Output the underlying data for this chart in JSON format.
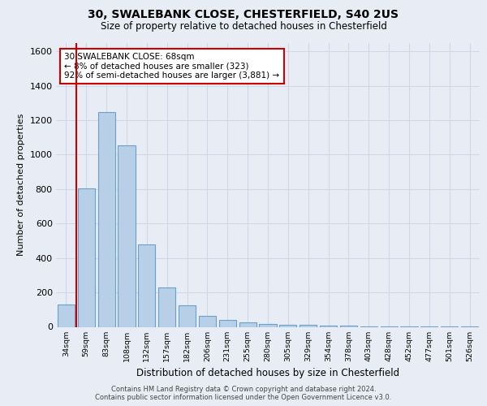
{
  "title_line1": "30, SWALEBANK CLOSE, CHESTERFIELD, S40 2US",
  "title_line2": "Size of property relative to detached houses in Chesterfield",
  "xlabel": "Distribution of detached houses by size in Chesterfield",
  "ylabel": "Number of detached properties",
  "footnote_line1": "Contains HM Land Registry data © Crown copyright and database right 2024.",
  "footnote_line2": "Contains public sector information licensed under the Open Government Licence v3.0.",
  "bar_labels": [
    "34sqm",
    "59sqm",
    "83sqm",
    "108sqm",
    "132sqm",
    "157sqm",
    "182sqm",
    "206sqm",
    "231sqm",
    "255sqm",
    "280sqm",
    "305sqm",
    "329sqm",
    "354sqm",
    "378sqm",
    "403sqm",
    "428sqm",
    "452sqm",
    "477sqm",
    "501sqm",
    "526sqm"
  ],
  "bar_values": [
    130,
    805,
    1245,
    1055,
    480,
    230,
    125,
    65,
    40,
    28,
    17,
    12,
    10,
    8,
    5,
    4,
    3,
    2,
    2,
    2,
    2
  ],
  "bar_color": "#b8cfe8",
  "bar_edge_color": "#6aa0cc",
  "ylim_max": 1650,
  "yticks": [
    0,
    200,
    400,
    600,
    800,
    1000,
    1200,
    1400,
    1600
  ],
  "marker_bar_index": 1,
  "marker_label": "30 SWALEBANK CLOSE: 68sqm",
  "marker_line1": "← 8% of detached houses are smaller (323)",
  "marker_line2": "92% of semi-detached houses are larger (3,881) →",
  "marker_color": "#cc0000",
  "annotation_facecolor": "#ffffff",
  "annotation_edgecolor": "#cc0000",
  "bg_color": "#e8edf5",
  "grid_color": "#d0d8e8"
}
